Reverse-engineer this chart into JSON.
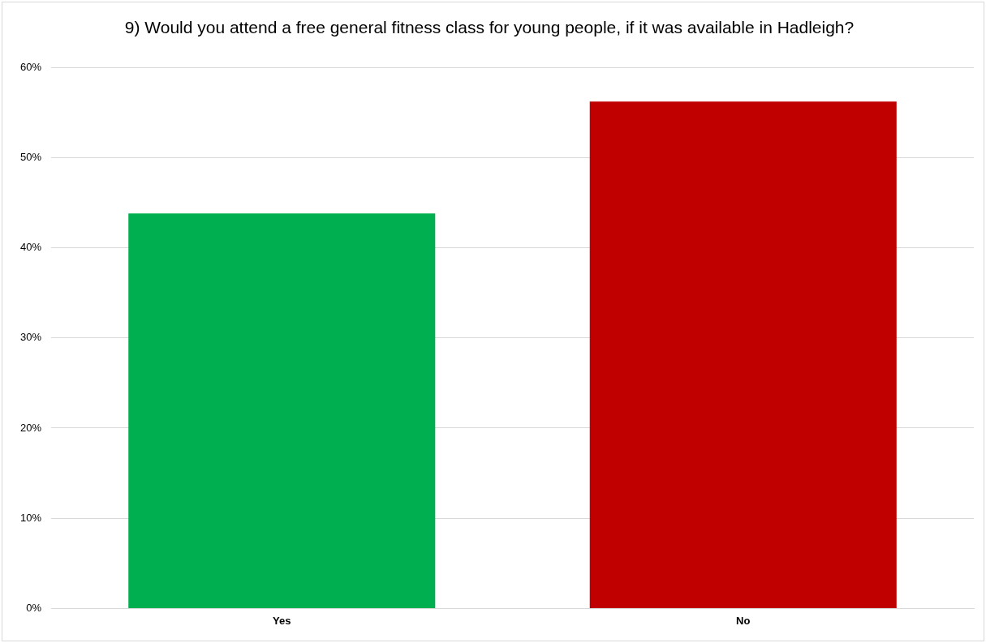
{
  "chart_data": {
    "type": "bar",
    "title": "9) Would you attend a free general fitness class for young people, if it was available in Hadleigh?",
    "categories": [
      "Yes",
      "No"
    ],
    "values": [
      43.8,
      56.2
    ],
    "colors": [
      "#00b050",
      "#c00000"
    ],
    "ylim": [
      0,
      60
    ],
    "yticks": [
      {
        "value": 0,
        "label": "0%"
      },
      {
        "value": 10,
        "label": "10%"
      },
      {
        "value": 20,
        "label": "20%"
      },
      {
        "value": 30,
        "label": "30%"
      },
      {
        "value": 40,
        "label": "40%"
      },
      {
        "value": 50,
        "label": "50%"
      },
      {
        "value": 60,
        "label": "60%"
      }
    ],
    "grid": "y",
    "legend": false
  }
}
